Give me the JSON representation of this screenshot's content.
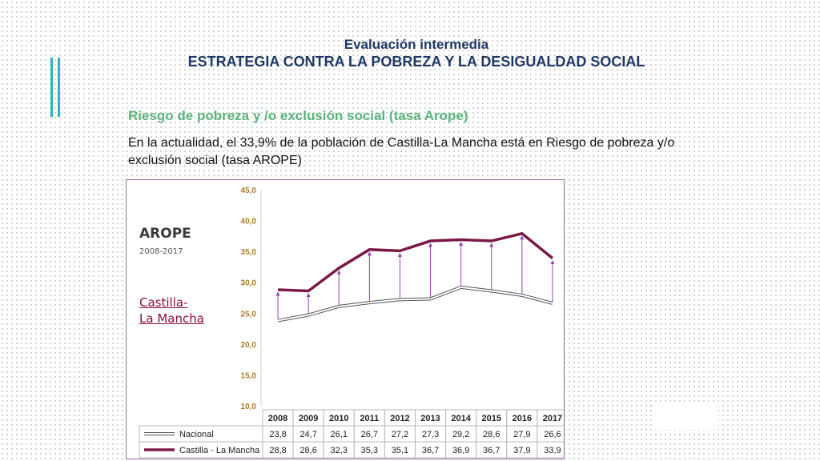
{
  "slide": {
    "title_line1": "Evaluación intermedia",
    "title_line2": "ESTRATEGIA CONTRA LA POBREZA Y LA DESIGUALDAD SOCIAL",
    "subheading": "Riesgo de pobreza y /o exclusión social (tasa Arope)",
    "body": "En la actualidad, el 33,9% de la población de Castilla-La Mancha está en Riesgo de pobreza y/o exclusión social (tasa AROPE)"
  },
  "colors": {
    "title": "#1f3864",
    "subheading": "#5bb47a",
    "accent": "#2fb3c0",
    "castilla": "#7a1a47",
    "nacional": "#555555",
    "arrow": "#8e44ad"
  },
  "chart_data": {
    "type": "line",
    "title": "AROPE",
    "subtitle": "2008-2017",
    "region_label_line1": "Castilla-",
    "region_label_line2": "La Mancha",
    "categories": [
      "2008",
      "2009",
      "2010",
      "2011",
      "2012",
      "2013",
      "2014",
      "2015",
      "2016",
      "2017"
    ],
    "series": [
      {
        "name": "Nacional",
        "values": [
          23.8,
          24.7,
          26.1,
          26.7,
          27.2,
          27.3,
          29.2,
          28.6,
          27.9,
          26.6
        ],
        "labels": [
          "23,8",
          "24,7",
          "26,1",
          "26,7",
          "27,2",
          "27,3",
          "29,2",
          "28,6",
          "27,9",
          "26,6"
        ]
      },
      {
        "name": "Castilla - La Mancha",
        "values": [
          28.8,
          28.6,
          32.3,
          35.3,
          35.1,
          36.7,
          36.9,
          36.7,
          37.9,
          33.9
        ],
        "labels": [
          "28,8",
          "28,6",
          "32,3",
          "35,3",
          "35,1",
          "36,7",
          "36,9",
          "36,7",
          "37,9",
          "33,9"
        ]
      }
    ],
    "ylim": [
      10,
      45
    ],
    "yticks": [
      "10,0",
      "15,0",
      "20,0",
      "25,0",
      "30,0",
      "35,0",
      "40,0",
      "45,0"
    ],
    "data_table": true,
    "legend": "data table below chart"
  }
}
